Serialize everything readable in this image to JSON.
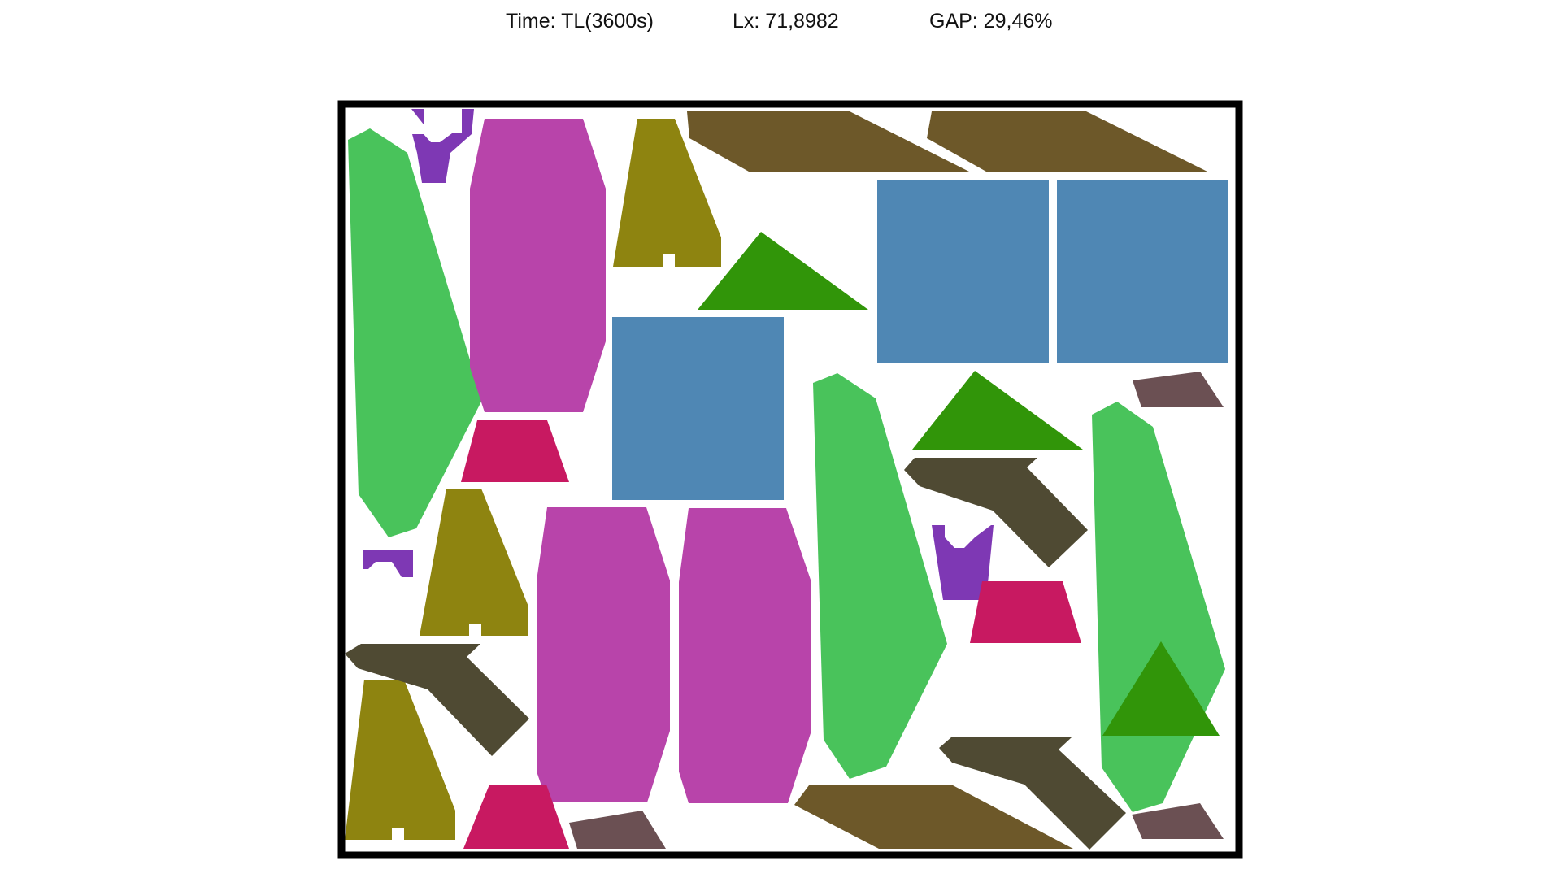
{
  "header": {
    "time": "Time: TL(3600s)",
    "lx": "Lx: 71,8982",
    "gap": "GAP: 29,46%"
  },
  "colors": {
    "border": "#000000",
    "background": "#ffffff",
    "green_leaf": "#49c35b",
    "purple_cup": "#7e38b4",
    "magenta_octagon": "#b844aa",
    "olive_a": "#8e8410",
    "brown_parallelogram": "#6d5829",
    "blue_square": "#4f87b4",
    "green_triangle": "#319509",
    "crimson_trapezoid": "#c81961",
    "mauve_quad": "#6b5053",
    "dark_arrow": "#4f4a33"
  },
  "pieces": [
    {
      "kind": "green_leaf",
      "color": "green_leaf"
    },
    {
      "kind": "purple_cup",
      "color": "purple_cup"
    },
    {
      "kind": "magenta_octagon",
      "color": "magenta_octagon"
    },
    {
      "kind": "olive_a",
      "color": "olive_a"
    },
    {
      "kind": "brown_parallelogram",
      "color": "brown_parallelogram"
    },
    {
      "kind": "brown_parallelogram",
      "color": "brown_parallelogram"
    },
    {
      "kind": "blue_square",
      "color": "blue_square"
    },
    {
      "kind": "blue_square",
      "color": "blue_square"
    },
    {
      "kind": "green_triangle",
      "color": "green_triangle"
    },
    {
      "kind": "blue_square",
      "color": "blue_square"
    },
    {
      "kind": "crimson_trapezoid",
      "color": "crimson_trapezoid"
    },
    {
      "kind": "green_leaf",
      "color": "green_leaf"
    },
    {
      "kind": "green_triangle",
      "color": "green_triangle"
    },
    {
      "kind": "mauve_quad",
      "color": "mauve_quad"
    },
    {
      "kind": "green_leaf",
      "color": "green_leaf"
    },
    {
      "kind": "dark_arrow",
      "color": "dark_arrow"
    },
    {
      "kind": "olive_a",
      "color": "olive_a"
    },
    {
      "kind": "purple_cup",
      "color": "purple_cup"
    },
    {
      "kind": "magenta_octagon",
      "color": "magenta_octagon"
    },
    {
      "kind": "magenta_octagon",
      "color": "magenta_octagon"
    },
    {
      "kind": "purple_cup",
      "color": "purple_cup"
    },
    {
      "kind": "crimson_trapezoid",
      "color": "crimson_trapezoid"
    },
    {
      "kind": "dark_arrow",
      "color": "dark_arrow"
    },
    {
      "kind": "green_triangle",
      "color": "green_triangle"
    },
    {
      "kind": "olive_a",
      "color": "olive_a"
    },
    {
      "kind": "dark_arrow",
      "color": "dark_arrow"
    },
    {
      "kind": "crimson_trapezoid",
      "color": "crimson_trapezoid"
    },
    {
      "kind": "mauve_quad",
      "color": "mauve_quad"
    },
    {
      "kind": "brown_parallelogram",
      "color": "brown_parallelogram"
    },
    {
      "kind": "mauve_quad",
      "color": "mauve_quad"
    }
  ]
}
